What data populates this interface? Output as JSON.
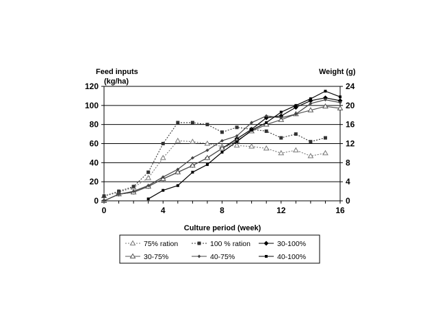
{
  "chart_data": {
    "type": "line",
    "title": "",
    "xlabel": "Culture period (week)",
    "ylabel_left": "Feed inputs (kg/ha)",
    "ylabel_left_lines": [
      "Feed inputs",
      "(kg/ha)"
    ],
    "ylabel_right": "Weight (g)",
    "xlim": [
      0,
      16
    ],
    "ylim_left": [
      0,
      120
    ],
    "ylim_right": [
      0,
      24
    ],
    "x_ticks": [
      0,
      4,
      8,
      12,
      16
    ],
    "y_left_ticks": [
      0,
      20,
      40,
      60,
      80,
      100,
      120
    ],
    "y_right_ticks": [
      0,
      4,
      8,
      12,
      16,
      20,
      24
    ],
    "grid": "horizontal",
    "legend_position": "bottom",
    "series": [
      {
        "name": "75% ration",
        "axis": "left",
        "color": "#777777",
        "line_style": "dotted",
        "marker": "triangle-open",
        "points": [
          [
            0,
            5
          ],
          [
            1,
            9
          ],
          [
            2,
            14
          ],
          [
            3,
            24
          ],
          [
            4,
            45
          ],
          [
            5,
            63
          ],
          [
            6,
            62
          ],
          [
            7,
            60
          ],
          [
            8,
            57
          ],
          [
            9,
            58
          ],
          [
            10,
            57
          ],
          [
            11,
            55
          ],
          [
            12,
            50
          ],
          [
            13,
            53
          ],
          [
            14,
            47
          ],
          [
            15,
            50
          ]
        ]
      },
      {
        "name": "100 % ration",
        "axis": "left",
        "color": "#333333",
        "line_style": "dotted",
        "marker": "square",
        "points": [
          [
            0,
            5
          ],
          [
            1,
            10
          ],
          [
            2,
            15
          ],
          [
            3,
            30
          ],
          [
            4,
            60
          ],
          [
            5,
            82
          ],
          [
            6,
            82
          ],
          [
            7,
            80
          ],
          [
            8,
            72
          ],
          [
            9,
            77
          ],
          [
            10,
            75
          ],
          [
            11,
            73
          ],
          [
            12,
            66
          ],
          [
            13,
            70
          ],
          [
            14,
            62
          ],
          [
            15,
            66
          ]
        ]
      },
      {
        "name": "30-100%",
        "axis": "right",
        "color": "#000000",
        "line_style": "solid",
        "marker": "diamond",
        "points": [
          [
            0,
            0
          ],
          [
            1,
            1.4
          ],
          [
            2,
            1.8
          ],
          [
            3,
            3
          ],
          [
            4,
            4.6
          ],
          [
            5,
            6
          ],
          [
            6,
            7.4
          ],
          [
            7,
            9
          ],
          [
            8,
            11
          ],
          [
            9,
            13
          ],
          [
            10,
            15
          ],
          [
            11,
            17.4
          ],
          [
            12,
            17.8
          ],
          [
            13,
            19.6
          ],
          [
            14,
            21
          ],
          [
            15,
            21.6
          ],
          [
            16,
            21
          ]
        ]
      },
      {
        "name": "30-75%",
        "axis": "right",
        "color": "#555555",
        "line_style": "solid",
        "marker": "triangle",
        "points": [
          [
            0,
            0
          ],
          [
            1,
            1.4
          ],
          [
            2,
            1.8
          ],
          [
            3,
            3
          ],
          [
            4,
            4.6
          ],
          [
            5,
            6
          ],
          [
            6,
            7.4
          ],
          [
            7,
            9
          ],
          [
            8,
            11
          ],
          [
            9,
            12.6
          ],
          [
            10,
            14.6
          ],
          [
            11,
            16
          ],
          [
            12,
            17
          ],
          [
            13,
            18.2
          ],
          [
            14,
            19
          ],
          [
            15,
            19.8
          ],
          [
            16,
            19.4
          ]
        ]
      },
      {
        "name": "40-75%",
        "axis": "right",
        "color": "#444444",
        "line_style": "solid",
        "marker": "diamond-small",
        "points": [
          [
            0,
            0
          ],
          [
            1,
            1.4
          ],
          [
            2,
            2
          ],
          [
            3,
            3.2
          ],
          [
            4,
            5
          ],
          [
            5,
            6.6
          ],
          [
            6,
            9
          ],
          [
            7,
            10.6
          ],
          [
            8,
            12.6
          ],
          [
            9,
            13.6
          ],
          [
            10,
            16.4
          ],
          [
            11,
            17.8
          ],
          [
            12,
            17.4
          ],
          [
            13,
            18.2
          ],
          [
            14,
            20.4
          ],
          [
            15,
            21.2
          ],
          [
            16,
            20.6
          ]
        ]
      },
      {
        "name": "40-100%",
        "axis": "right",
        "color": "#000000",
        "line_style": "solid",
        "marker": "square-small",
        "points": [
          [
            3,
            0.4
          ],
          [
            4,
            2.2
          ],
          [
            5,
            3.2
          ],
          [
            6,
            6
          ],
          [
            7,
            7.6
          ],
          [
            8,
            10.2
          ],
          [
            9,
            12.4
          ],
          [
            10,
            14.8
          ],
          [
            11,
            16.4
          ],
          [
            12,
            18.6
          ],
          [
            13,
            20
          ],
          [
            14,
            21.4
          ],
          [
            15,
            23
          ],
          [
            16,
            21.8
          ]
        ]
      }
    ]
  }
}
